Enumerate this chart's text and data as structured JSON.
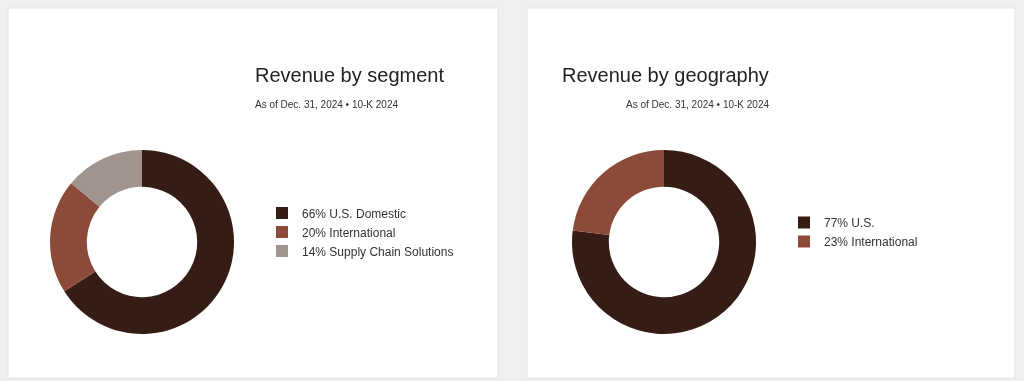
{
  "chart_data": [
    {
      "type": "donut",
      "title": "Revenue by segment",
      "subtitle": "As of Dec. 31, 2024 • 10-K 2024",
      "categories": [
        "U.S. Domestic",
        "International",
        "Supply Chain Solutions"
      ],
      "values": [
        66,
        20,
        14
      ],
      "value_labels": [
        "66%",
        "20%",
        "14%"
      ],
      "colors": [
        "#351c15",
        "#8c4a38",
        "#a1948f"
      ],
      "legend": "right"
    },
    {
      "type": "donut",
      "title": "Revenue by geography",
      "subtitle": "As of Dec. 31, 2024 • 10-K 2024",
      "categories": [
        "U.S.",
        "International"
      ],
      "values": [
        77,
        23
      ],
      "value_labels": [
        "77%",
        "23%"
      ],
      "colors": [
        "#351c15",
        "#8c4a38"
      ],
      "legend": "right"
    }
  ]
}
